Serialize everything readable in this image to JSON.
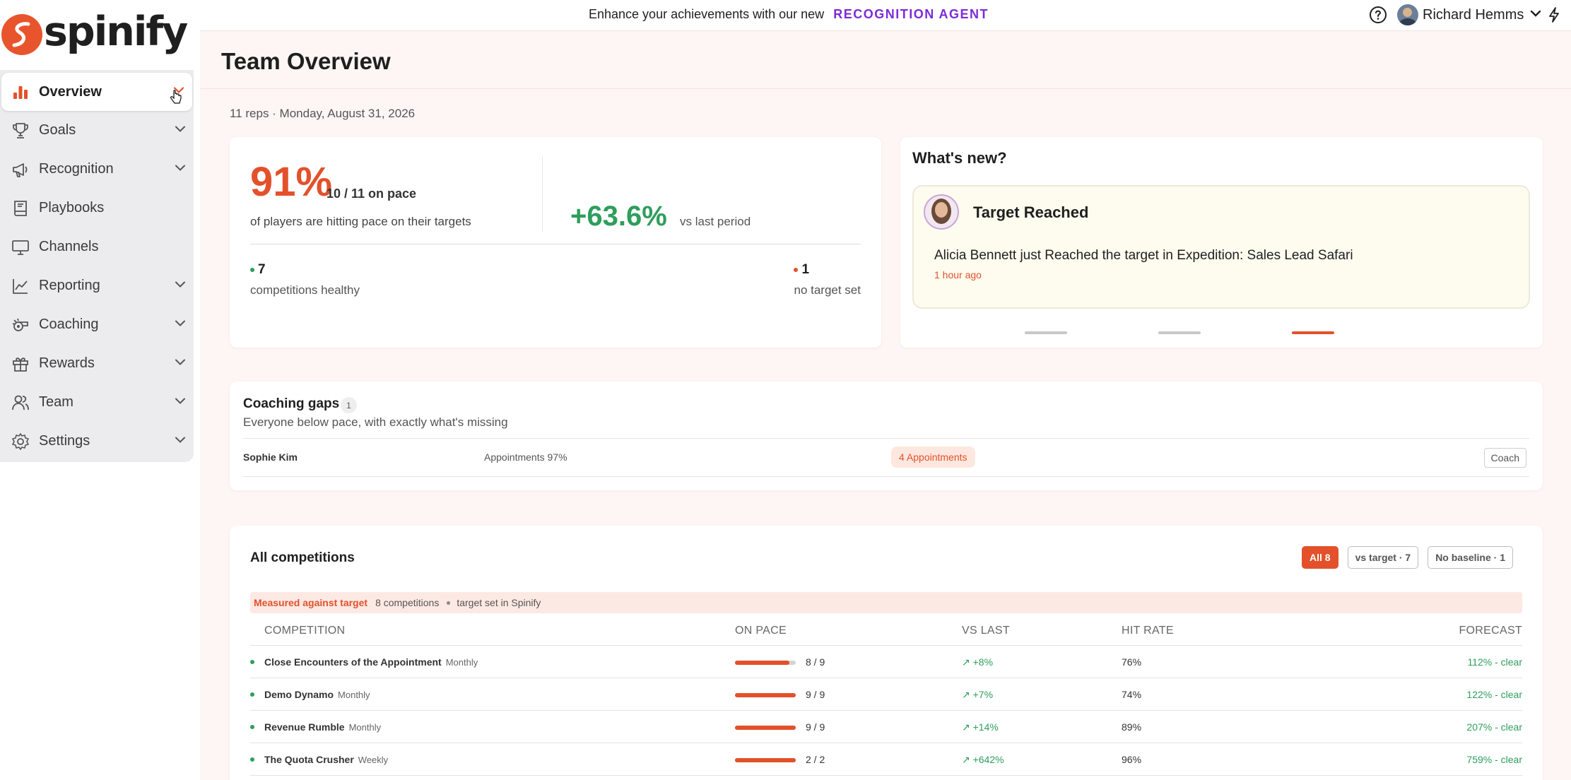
{
  "brand": {
    "name": "spinify",
    "color": "#e8552d"
  },
  "sidebar": {
    "items": [
      {
        "label": "Overview",
        "icon": "bar-chart-icon",
        "active": true,
        "expandable": true
      },
      {
        "label": "Goals",
        "icon": "trophy-icon",
        "expandable": true
      },
      {
        "label": "Recognition",
        "icon": "megaphone-icon",
        "expandable": true
      },
      {
        "label": "Playbooks",
        "icon": "book-icon",
        "expandable": false
      },
      {
        "label": "Channels",
        "icon": "monitor-icon",
        "expandable": false
      },
      {
        "label": "Reporting",
        "icon": "line-chart-icon",
        "expandable": true
      },
      {
        "label": "Coaching",
        "icon": "whistle-icon",
        "expandable": true
      },
      {
        "label": "Rewards",
        "icon": "gift-icon",
        "expandable": true
      },
      {
        "label": "Team",
        "icon": "users-icon",
        "expandable": true
      },
      {
        "label": "Settings",
        "icon": "gear-icon",
        "expandable": true
      }
    ]
  },
  "topbar": {
    "promo_text": "Enhance your achievements with our new",
    "promo_link": "RECOGNITION AGENT",
    "user_name": "Richard Hemms"
  },
  "page": {
    "title": "Team Overview",
    "subline": "11 reps · Monday, August 31, 2026"
  },
  "pace": {
    "percent": "91%",
    "count": "10 / 11 on pace",
    "description": "of players are hitting pace on their targets",
    "delta": "+63.6%",
    "delta_label": "vs last period",
    "healthy_count": "7",
    "healthy_label": "competitions healthy",
    "no_target_count": "1",
    "no_target_label": "no target set"
  },
  "news": {
    "title": "What's new?",
    "item_heading": "Target Reached",
    "item_body": "Alicia Bennett just Reached the target in Expedition: Sales Lead Safari",
    "item_time": "1 hour ago",
    "carousel_active_index": 2,
    "carousel_count": 3
  },
  "coaching_gaps": {
    "title": "Coaching gaps",
    "count": "1",
    "subtitle": "Everyone below pace, with exactly what's missing",
    "rows": [
      {
        "name": "Sophie Kim",
        "metric": "Appointments 97%",
        "gap": "4 Appointments",
        "action": "Coach"
      }
    ]
  },
  "competitions": {
    "title": "All competitions",
    "filters": [
      {
        "label": "All 8",
        "active": true
      },
      {
        "label": "vs target · 7",
        "active": false
      },
      {
        "label": "No baseline · 1",
        "active": false
      }
    ],
    "measured_label": "Measured against target",
    "measured_count": "8 competitions",
    "measured_note": "target set in Spinify",
    "columns": [
      "COMPETITION",
      "ON PACE",
      "VS LAST",
      "HIT RATE",
      "FORECAST"
    ],
    "rows": [
      {
        "name": "Close Encounters of the Appointment",
        "period": "Monthly",
        "on_pace": "8 / 9",
        "pace_fraction": 0.89,
        "vs_last": "+8%",
        "hit_rate": "76%",
        "forecast": "112% - clear"
      },
      {
        "name": "Demo Dynamo",
        "period": "Monthly",
        "on_pace": "9 / 9",
        "pace_fraction": 1.0,
        "vs_last": "+7%",
        "hit_rate": "74%",
        "forecast": "122% - clear"
      },
      {
        "name": "Revenue Rumble",
        "period": "Monthly",
        "on_pace": "9 / 9",
        "pace_fraction": 1.0,
        "vs_last": "+14%",
        "hit_rate": "89%",
        "forecast": "207% - clear"
      },
      {
        "name": "The Quota Crusher",
        "period": "Weekly",
        "on_pace": "2 / 2",
        "pace_fraction": 1.0,
        "vs_last": "+642%",
        "hit_rate": "96%",
        "forecast": "759% - clear"
      }
    ]
  },
  "colors": {
    "accent": "#e3512b",
    "positive": "#2e9e5b",
    "promo": "#7b2bd9"
  }
}
